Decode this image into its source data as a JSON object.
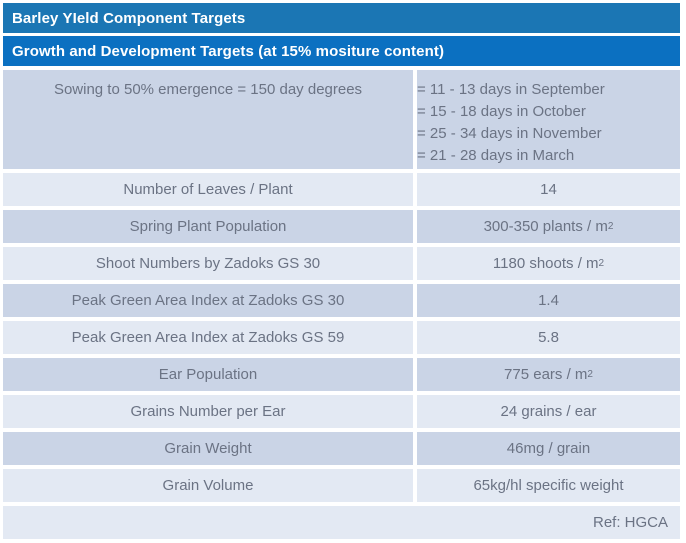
{
  "title_bar": {
    "label": "Barley YIeld Component Targets"
  },
  "subtitle_bar": {
    "label": "Growth and Development Targets (at 15% mositure content)"
  },
  "table": {
    "rows": [
      {
        "label": "Sowing to 50% emergence = 150 day degrees",
        "value_lines": [
          "= 11 - 13 days in September",
          "= 15 - 18 days in October",
          "= 25 - 34 days in November",
          "= 21 - 28 days in March"
        ],
        "shade": "dark"
      },
      {
        "label": "Number of Leaves / Plant",
        "value": "14",
        "shade": "light"
      },
      {
        "label": "Spring Plant Population",
        "value": "300-350 plants / m",
        "value_sup": "2",
        "shade": "dark"
      },
      {
        "label": "Shoot Numbers by Zadoks GS 30",
        "value": "1180 shoots / m",
        "value_sup": "2",
        "shade": "light"
      },
      {
        "label": "Peak Green Area Index at Zadoks GS 30",
        "value": "1.4",
        "shade": "dark"
      },
      {
        "label": "Peak Green Area Index at Zadoks GS 59",
        "value": "5.8",
        "shade": "light"
      },
      {
        "label": "Ear Population",
        "value": "775 ears / m",
        "value_sup": "2",
        "shade": "dark"
      },
      {
        "label": "Grains Number per Ear",
        "value": "24 grains / ear",
        "shade": "light"
      },
      {
        "label": "Grain Weight",
        "value": "46mg / grain",
        "shade": "dark"
      },
      {
        "label": "Grain Volume",
        "value": "65kg/hl specific weight",
        "shade": "light"
      }
    ],
    "footer": {
      "ref_label": "Ref: HGCA"
    }
  },
  "colors": {
    "title_bar_bg": "#1b76b4",
    "subtitle_bar_bg": "#0b70c1",
    "row_dark_bg": "#cad4e6",
    "row_light_bg": "#e3e9f3",
    "body_text": "#6b7384",
    "header_text": "#ffffff",
    "page_bg": "#ffffff"
  }
}
